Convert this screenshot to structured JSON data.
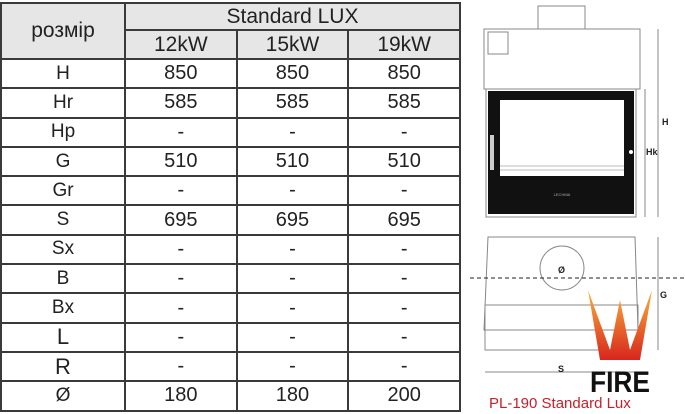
{
  "table": {
    "corner_label": "розмір",
    "group_header": "Standard LUX",
    "columns": [
      "12kW",
      "15kW",
      "19kW"
    ],
    "rows": [
      {
        "label": "H",
        "values": [
          "850",
          "850",
          "850"
        ]
      },
      {
        "label": "Hr",
        "values": [
          "585",
          "585",
          "585"
        ]
      },
      {
        "label": "Hp",
        "values": [
          "-",
          "-",
          "-"
        ]
      },
      {
        "label": "G",
        "values": [
          "510",
          "510",
          "510"
        ]
      },
      {
        "label": "Gr",
        "values": [
          "-",
          "-",
          "-"
        ]
      },
      {
        "label": "S",
        "values": [
          "695",
          "695",
          "695"
        ]
      },
      {
        "label": "Sx",
        "values": [
          "-",
          "-",
          "-"
        ]
      },
      {
        "label": "B",
        "values": [
          "-",
          "-",
          "-"
        ]
      },
      {
        "label": "Bx",
        "values": [
          "-",
          "-",
          "-"
        ]
      },
      {
        "label": "L",
        "values": [
          "-",
          "-",
          "-"
        ]
      },
      {
        "label": "R",
        "values": [
          "-",
          "-",
          "-"
        ]
      },
      {
        "label": "Ø",
        "values": [
          "180",
          "180",
          "200"
        ]
      }
    ]
  },
  "drawing": {
    "dim_labels": {
      "h": "H",
      "hk": "Hk",
      "g": "G",
      "s": "S",
      "diameter": "Ø"
    },
    "door_brand": "LECHMA",
    "logo_text": "FIRE WORK",
    "caption": "PL-190 Standard Lux"
  },
  "colors": {
    "logo_red": "#c8202a",
    "logo_orange": "#f7941d"
  }
}
